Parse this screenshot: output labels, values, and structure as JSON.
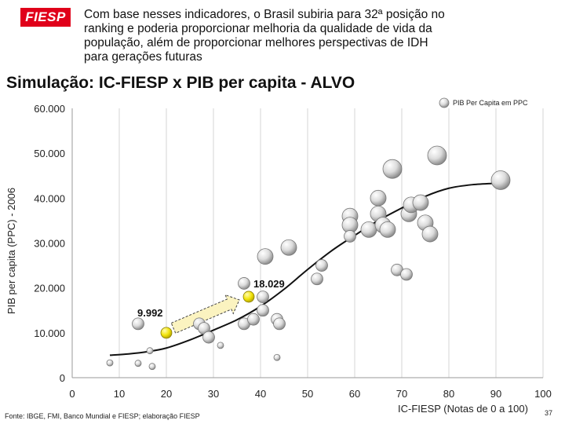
{
  "header": {
    "logo_text": "FIESP",
    "logo_color": "#e0001a",
    "lines": [
      "Com base nesses indicadores, o Brasil subiria para 32ª posição no",
      "ranking e poderia proporcionar melhoria da qualidade de vida da",
      "população, além de proporcionar melhores perspectivas de IDH",
      "para gerações futuras"
    ]
  },
  "slide_title": "Simulação: IC-FIESP x PIB per capita - ALVO",
  "footer": {
    "source": "Fonte: IBGE, FMI, Banco Mundial e FIESP; elaboração FIESP",
    "page_number": "37"
  },
  "chart_data": {
    "type": "scatter",
    "xlabel": "IC-FIESP (Notas de 0 a 100)",
    "ylabel": "PIB per capita (PPC) - 2006",
    "xlim": [
      0,
      100
    ],
    "ylim": [
      0,
      60000
    ],
    "x_ticks": [
      "0",
      "10",
      "20",
      "30",
      "40",
      "50",
      "60",
      "70",
      "80",
      "90",
      "100"
    ],
    "y_ticks": [
      "0",
      "10.000",
      "20.000",
      "30.000",
      "40.000",
      "50.000",
      "60.000"
    ],
    "grid": "vertical",
    "legend": {
      "label": "PIB Per Capita em PPC",
      "position": "top-right"
    },
    "colors": {
      "bubble": "#d9d9d9",
      "highlight": "#f2e40a",
      "curve": "#111111",
      "arrow_fill": "#fbf3c0"
    },
    "points": [
      {
        "x": 8,
        "y": 3300,
        "size": "s"
      },
      {
        "x": 14,
        "y": 3200,
        "size": "s"
      },
      {
        "x": 14,
        "y": 12000,
        "size": "m"
      },
      {
        "x": 16.5,
        "y": 6000,
        "size": "s"
      },
      {
        "x": 17,
        "y": 2500,
        "size": "s"
      },
      {
        "x": 27,
        "y": 12000,
        "size": "m"
      },
      {
        "x": 28,
        "y": 11000,
        "size": "m"
      },
      {
        "x": 29,
        "y": 9000,
        "size": "m"
      },
      {
        "x": 31.5,
        "y": 7200,
        "size": "s"
      },
      {
        "x": 36.5,
        "y": 21000,
        "size": "m"
      },
      {
        "x": 36.5,
        "y": 12000,
        "size": "m"
      },
      {
        "x": 38.5,
        "y": 13000,
        "size": "m"
      },
      {
        "x": 40.5,
        "y": 15000,
        "size": "m"
      },
      {
        "x": 40.5,
        "y": 18000,
        "size": "m"
      },
      {
        "x": 41,
        "y": 27000,
        "size": "l"
      },
      {
        "x": 43.5,
        "y": 13000,
        "size": "m"
      },
      {
        "x": 44,
        "y": 12000,
        "size": "m"
      },
      {
        "x": 43.5,
        "y": 4500,
        "size": "s"
      },
      {
        "x": 46,
        "y": 29000,
        "size": "l"
      },
      {
        "x": 52,
        "y": 22000,
        "size": "m"
      },
      {
        "x": 53,
        "y": 25000,
        "size": "m"
      },
      {
        "x": 59,
        "y": 36000,
        "size": "l"
      },
      {
        "x": 59,
        "y": 34000,
        "size": "l"
      },
      {
        "x": 59,
        "y": 31500,
        "size": "m"
      },
      {
        "x": 63,
        "y": 33000,
        "size": "l"
      },
      {
        "x": 65,
        "y": 40000,
        "size": "l"
      },
      {
        "x": 65,
        "y": 36500,
        "size": "l"
      },
      {
        "x": 66,
        "y": 34000,
        "size": "l"
      },
      {
        "x": 67,
        "y": 33000,
        "size": "l"
      },
      {
        "x": 68,
        "y": 46500,
        "size": "xl"
      },
      {
        "x": 69,
        "y": 24000,
        "size": "m"
      },
      {
        "x": 71,
        "y": 23000,
        "size": "m"
      },
      {
        "x": 71.5,
        "y": 36500,
        "size": "l"
      },
      {
        "x": 72,
        "y": 38500,
        "size": "l"
      },
      {
        "x": 74,
        "y": 39000,
        "size": "l"
      },
      {
        "x": 75,
        "y": 34500,
        "size": "l"
      },
      {
        "x": 76,
        "y": 32000,
        "size": "l"
      },
      {
        "x": 77.5,
        "y": 49500,
        "size": "xl"
      },
      {
        "x": 91,
        "y": 44000,
        "size": "xl"
      }
    ],
    "highlights": [
      {
        "x": 20,
        "y": 9992,
        "label": "9.992"
      },
      {
        "x": 37.5,
        "y": 18029,
        "label": "18.029"
      }
    ],
    "trend_curve": [
      {
        "x": 8,
        "y": 5000
      },
      {
        "x": 12,
        "y": 5300
      },
      {
        "x": 16,
        "y": 5800
      },
      {
        "x": 20,
        "y": 6600
      },
      {
        "x": 25,
        "y": 8400
      },
      {
        "x": 30,
        "y": 10600
      },
      {
        "x": 35,
        "y": 12900
      },
      {
        "x": 40,
        "y": 15900
      },
      {
        "x": 45,
        "y": 19700
      },
      {
        "x": 50,
        "y": 24100
      },
      {
        "x": 55,
        "y": 28200
      },
      {
        "x": 60,
        "y": 31700
      },
      {
        "x": 65,
        "y": 35000
      },
      {
        "x": 70,
        "y": 37800
      },
      {
        "x": 75,
        "y": 40400
      },
      {
        "x": 80,
        "y": 42200
      },
      {
        "x": 85,
        "y": 43000
      },
      {
        "x": 90,
        "y": 43300
      }
    ]
  }
}
